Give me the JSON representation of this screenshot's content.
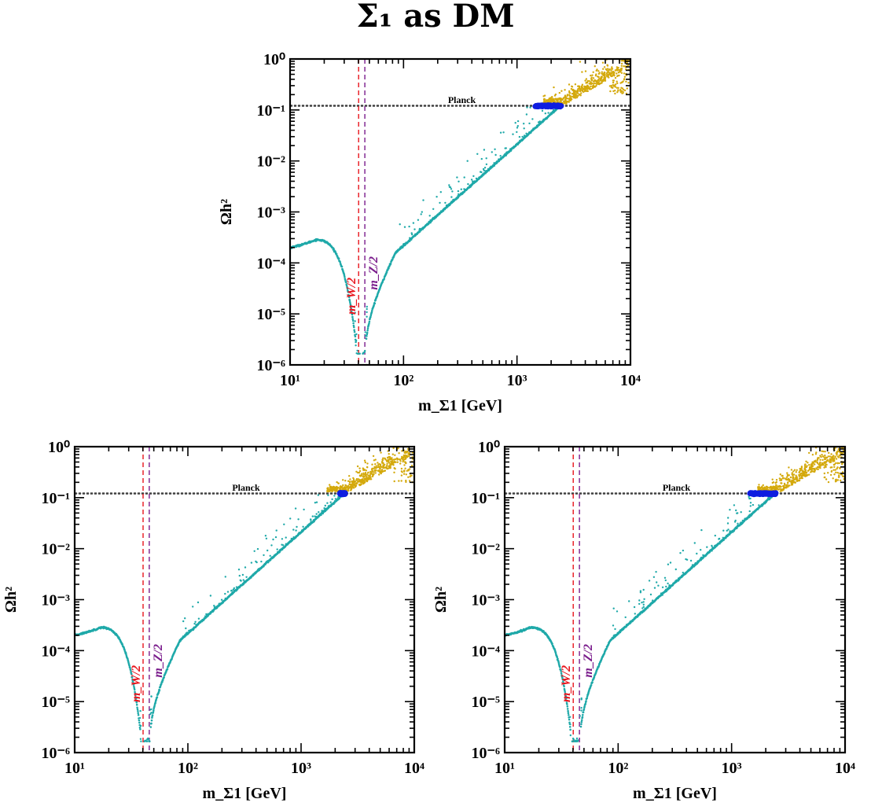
{
  "figure": {
    "title": "Σ₁ as DM"
  },
  "chart_data": [
    {
      "type": "scatter",
      "xlabel": "m_Σ1 [GeV]",
      "ylabel": "Ωh²",
      "xscale": "log",
      "yscale": "log",
      "xlim": [
        10,
        10000
      ],
      "ylim": [
        1e-06,
        1
      ],
      "x_tick_labels": [
        "10¹",
        "10²",
        "10³",
        "10⁴"
      ],
      "y_tick_labels": [
        "10⁰",
        "10⁻¹",
        "10⁻²",
        "10⁻³",
        "10⁻⁴",
        "10⁻⁵",
        "10⁻⁶"
      ],
      "reference_lines": [
        {
          "label": "Planck",
          "orientation": "horizontal",
          "y": [
            0.118,
            0.124
          ],
          "color": "#000000"
        },
        {
          "label": "m_W/2",
          "orientation": "vertical",
          "x": 40.2,
          "color": "#e8141c"
        },
        {
          "label": "m_Z/2",
          "orientation": "vertical",
          "x": 45.6,
          "color": "#7a1c8c"
        }
      ],
      "series": [
        {
          "color": "#1fa9a9",
          "points": [
            [
              10,
              0.0002
            ],
            [
              17,
              0.00028
            ],
            [
              25,
              0.00012
            ],
            [
              35,
              2e-05
            ],
            [
              40,
              2e-06
            ],
            [
              47,
              2e-06
            ],
            [
              55,
              3e-05
            ],
            [
              85,
              0.0002
            ],
            [
              100,
              0.0003
            ],
            [
              2400,
              0.12
            ]
          ]
        },
        {
          "color": "#0f1ee0",
          "points": [
            [
              1500,
              0.12
            ],
            [
              2000,
              0.12
            ],
            [
              2400,
              0.12
            ]
          ]
        },
        {
          "color": "#d4a90c",
          "points": [
            [
              2000,
              0.15
            ],
            [
              3000,
              0.3
            ],
            [
              4000,
              0.5
            ],
            [
              5500,
              0.9
            ],
            [
              8000,
              0.4
            ]
          ]
        }
      ],
      "blue_range": [
        1450,
        2450
      ]
    },
    {
      "type": "scatter",
      "xlabel": "m_Σ1 [GeV]",
      "ylabel": "Ωh²",
      "xscale": "log",
      "yscale": "log",
      "xlim": [
        10,
        10000
      ],
      "ylim": [
        1e-06,
        1
      ],
      "x_tick_labels": [
        "10¹",
        "10²",
        "10³",
        "10⁴"
      ],
      "y_tick_labels": [
        "10⁰",
        "10⁻¹",
        "10⁻²",
        "10⁻³",
        "10⁻⁴",
        "10⁻⁵",
        "10⁻⁶"
      ],
      "reference_lines": [
        {
          "label": "Planck",
          "orientation": "horizontal",
          "y": [
            0.118,
            0.124
          ],
          "color": "#000000"
        },
        {
          "label": "m_W/2",
          "orientation": "vertical",
          "x": 40.2,
          "color": "#e8141c"
        },
        {
          "label": "m_Z/2",
          "orientation": "vertical",
          "x": 45.6,
          "color": "#7a1c8c"
        }
      ],
      "series": [
        {
          "color": "#1fa9a9",
          "points": [
            [
              10,
              0.0002
            ],
            [
              17,
              0.00028
            ],
            [
              25,
              0.00012
            ],
            [
              35,
              2e-05
            ],
            [
              40,
              2e-06
            ],
            [
              47,
              2e-06
            ],
            [
              55,
              3e-05
            ],
            [
              85,
              0.0002
            ],
            [
              100,
              0.0003
            ],
            [
              2400,
              0.12
            ]
          ]
        },
        {
          "color": "#0f1ee0",
          "points": [
            [
              2250,
              0.12
            ],
            [
              2400,
              0.12
            ]
          ]
        },
        {
          "color": "#d4a90c",
          "points": [
            [
              1800,
              0.15
            ],
            [
              3000,
              0.3
            ],
            [
              4000,
              0.5
            ],
            [
              5500,
              0.9
            ],
            [
              8000,
              0.4
            ]
          ]
        }
      ],
      "blue_range": [
        2200,
        2450
      ]
    },
    {
      "type": "scatter",
      "xlabel": "m_Σ1 [GeV]",
      "ylabel": "Ωh²",
      "xscale": "log",
      "yscale": "log",
      "xlim": [
        10,
        10000
      ],
      "ylim": [
        1e-06,
        1
      ],
      "x_tick_labels": [
        "10¹",
        "10²",
        "10³",
        "10⁴"
      ],
      "y_tick_labels": [
        "10⁰",
        "10⁻¹",
        "10⁻²",
        "10⁻³",
        "10⁻⁴",
        "10⁻⁵",
        "10⁻⁶"
      ],
      "reference_lines": [
        {
          "label": "Planck",
          "orientation": "horizontal",
          "y": [
            0.118,
            0.124
          ],
          "color": "#000000"
        },
        {
          "label": "m_W/2",
          "orientation": "vertical",
          "x": 40.2,
          "color": "#e8141c"
        },
        {
          "label": "m_Z/2",
          "orientation": "vertical",
          "x": 45.6,
          "color": "#7a1c8c"
        }
      ],
      "series": [
        {
          "color": "#1fa9a9",
          "points": [
            [
              10,
              0.0002
            ],
            [
              17,
              0.00028
            ],
            [
              25,
              0.00012
            ],
            [
              35,
              2e-05
            ],
            [
              40,
              2e-06
            ],
            [
              47,
              2e-06
            ],
            [
              55,
              3e-05
            ],
            [
              85,
              0.0002
            ],
            [
              100,
              0.0003
            ],
            [
              2400,
              0.12
            ]
          ]
        },
        {
          "color": "#0f1ee0",
          "points": [
            [
              1500,
              0.12
            ],
            [
              2000,
              0.12
            ],
            [
              2400,
              0.12
            ]
          ]
        },
        {
          "color": "#d4a90c",
          "points": [
            [
              2000,
              0.15
            ],
            [
              3000,
              0.3
            ],
            [
              4000,
              0.5
            ],
            [
              5500,
              0.9
            ],
            [
              8000,
              0.4
            ]
          ]
        }
      ],
      "blue_range": [
        1450,
        2450
      ]
    }
  ]
}
